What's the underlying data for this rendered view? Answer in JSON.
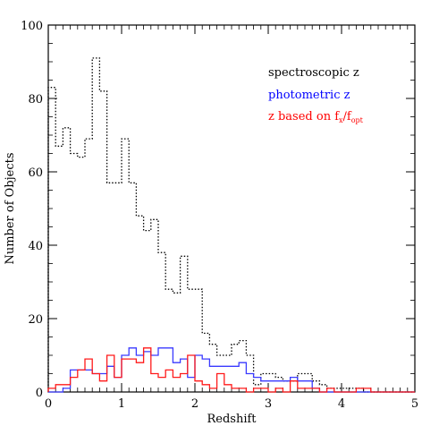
{
  "chart_data": {
    "type": "line",
    "title": "",
    "xlabel": "Redshift",
    "ylabel": "Number of Objects",
    "xlim": [
      0,
      5
    ],
    "ylim": [
      0,
      100
    ],
    "grid": false,
    "legend_position": "top-right",
    "x_ticks": [
      0,
      1,
      2,
      3,
      4,
      5
    ],
    "y_ticks": [
      0,
      20,
      40,
      60,
      80,
      100
    ],
    "bin_width": 0.1,
    "series": [
      {
        "name": "spectroscopic z",
        "color": "#000000",
        "line_style": "dotted",
        "x": [
          0.0,
          0.1,
          0.2,
          0.3,
          0.4,
          0.5,
          0.6,
          0.7,
          0.8,
          0.9,
          1.0,
          1.1,
          1.2,
          1.3,
          1.4,
          1.5,
          1.6,
          1.7,
          1.8,
          1.9,
          2.0,
          2.1,
          2.2,
          2.3,
          2.4,
          2.5,
          2.6,
          2.7,
          2.8,
          2.9,
          3.0,
          3.1,
          3.2,
          3.3,
          3.4,
          3.5,
          3.6,
          3.7,
          3.8,
          3.9,
          4.0,
          4.1,
          4.2,
          4.3,
          4.4,
          4.5,
          4.6,
          4.7,
          4.8,
          4.9
        ],
        "values": [
          83,
          67,
          72,
          65,
          64,
          69,
          91,
          82,
          57,
          57,
          69,
          57,
          48,
          44,
          47,
          38,
          28,
          27,
          37,
          28,
          28,
          16,
          13,
          10,
          10,
          13,
          14,
          10,
          2,
          5,
          5,
          4,
          3,
          3,
          5,
          5,
          3,
          2,
          1,
          1,
          1,
          1,
          1,
          0,
          0,
          0,
          0,
          0,
          0,
          0
        ]
      },
      {
        "name": "photometric z",
        "color": "#3a3aff",
        "line_style": "solid",
        "x": [
          0.0,
          0.1,
          0.2,
          0.3,
          0.4,
          0.5,
          0.6,
          0.7,
          0.8,
          0.9,
          1.0,
          1.1,
          1.2,
          1.3,
          1.4,
          1.5,
          1.6,
          1.7,
          1.8,
          1.9,
          2.0,
          2.1,
          2.2,
          2.3,
          2.4,
          2.5,
          2.6,
          2.7,
          2.8,
          2.9,
          3.0,
          3.1,
          3.2,
          3.3,
          3.4,
          3.5,
          3.6,
          3.7,
          3.8,
          3.9,
          4.0,
          4.1,
          4.2,
          4.3,
          4.4,
          4.5,
          4.6,
          4.7,
          4.8,
          4.9
        ],
        "values": [
          0,
          0,
          1,
          6,
          6,
          6,
          5,
          5,
          7,
          4,
          10,
          12,
          10,
          11,
          10,
          12,
          12,
          8,
          9,
          4,
          10,
          9,
          7,
          7,
          7,
          7,
          8,
          5,
          4,
          3,
          3,
          3,
          3,
          4,
          3,
          3,
          1,
          0,
          0,
          0,
          0,
          0,
          0,
          0,
          0,
          0,
          0,
          0,
          0,
          0
        ]
      },
      {
        "name": "z based on f_x/f_opt",
        "color": "#ff1a1a",
        "line_style": "solid",
        "x": [
          0.0,
          0.1,
          0.2,
          0.3,
          0.4,
          0.5,
          0.6,
          0.7,
          0.8,
          0.9,
          1.0,
          1.1,
          1.2,
          1.3,
          1.4,
          1.5,
          1.6,
          1.7,
          1.8,
          1.9,
          2.0,
          2.1,
          2.2,
          2.3,
          2.4,
          2.5,
          2.6,
          2.7,
          2.8,
          2.9,
          3.0,
          3.1,
          3.2,
          3.3,
          3.4,
          3.5,
          3.6,
          3.7,
          3.8,
          3.9,
          4.0,
          4.1,
          4.2,
          4.3,
          4.4,
          4.5,
          4.6,
          4.7,
          4.8,
          4.9
        ],
        "values": [
          1,
          2,
          2,
          4,
          6,
          9,
          5,
          3,
          10,
          4,
          9,
          9,
          8,
          12,
          5,
          4,
          6,
          4,
          5,
          10,
          3,
          2,
          1,
          5,
          2,
          1,
          1,
          0,
          1,
          1,
          0,
          1,
          0,
          3,
          1,
          1,
          1,
          0,
          1,
          0,
          0,
          0,
          1,
          1,
          0,
          0,
          0,
          0,
          0,
          0
        ]
      }
    ],
    "legend": [
      {
        "label": "spectroscopic z",
        "color": "#000000"
      },
      {
        "label": "photometric z",
        "color": "#0000ff"
      },
      {
        "label_main": "z based on f",
        "sub1": "x",
        "sep": "/f",
        "sub2": "opt",
        "color": "#ff0000"
      }
    ]
  }
}
